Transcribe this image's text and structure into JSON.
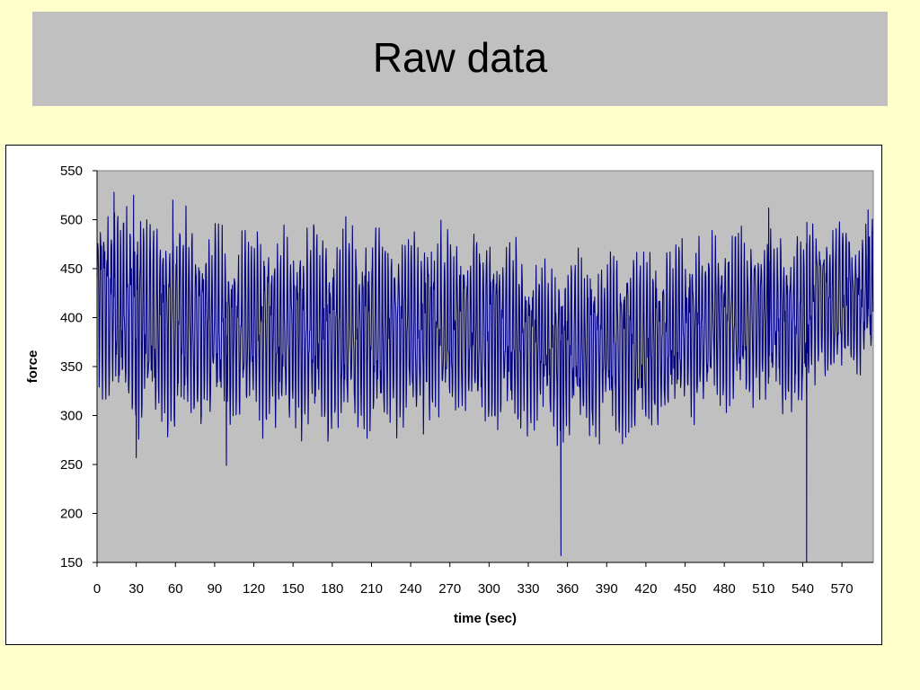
{
  "slide": {
    "title": "Raw data"
  },
  "colors": {
    "background": "#ffffcc",
    "title_bar": "#c0c0c0",
    "plot_area": "#c0c0c0",
    "series_line": "#000080"
  },
  "chart_data": {
    "type": "line",
    "title": "",
    "xlabel": "time (sec)",
    "ylabel": "force",
    "xlim": [
      0,
      594
    ],
    "ylim": [
      150,
      550
    ],
    "xticks": [
      0,
      30,
      60,
      90,
      120,
      150,
      180,
      210,
      240,
      270,
      300,
      330,
      360,
      390,
      420,
      450,
      480,
      510,
      540,
      570
    ],
    "yticks": [
      150,
      200,
      250,
      300,
      350,
      400,
      450,
      500,
      550
    ],
    "grid": false,
    "legend": "none",
    "series": [
      {
        "cycle_period_sec": 2.5,
        "envelope": {
          "x": [
            0,
            5,
            30,
            60,
            90,
            120,
            150,
            180,
            210,
            240,
            270,
            300,
            330,
            345,
            360,
            390,
            420,
            450,
            480,
            510,
            540,
            548,
            570,
            594
          ],
          "peak": [
            505,
            510,
            500,
            495,
            480,
            480,
            482,
            478,
            485,
            480,
            482,
            478,
            462,
            455,
            455,
            458,
            462,
            470,
            478,
            478,
            475,
            490,
            492,
            492
          ],
          "trough": [
            340,
            325,
            300,
            295,
            300,
            300,
            290,
            285,
            295,
            300,
            295,
            300,
            292,
            290,
            285,
            285,
            285,
            305,
            318,
            320,
            310,
            345,
            345,
            345
          ]
        },
        "spikes": [
          {
            "x": 30,
            "y": 257
          },
          {
            "x": 99,
            "y": 249
          },
          {
            "x": 355,
            "y": 157
          },
          {
            "x": 543,
            "y": 150
          }
        ],
        "peak_spikes": [
          {
            "x": 13,
            "y": 528
          },
          {
            "x": 28,
            "y": 525
          },
          {
            "x": 58,
            "y": 520
          },
          {
            "x": 514,
            "y": 512
          },
          {
            "x": 590,
            "y": 510
          }
        ]
      }
    ]
  }
}
